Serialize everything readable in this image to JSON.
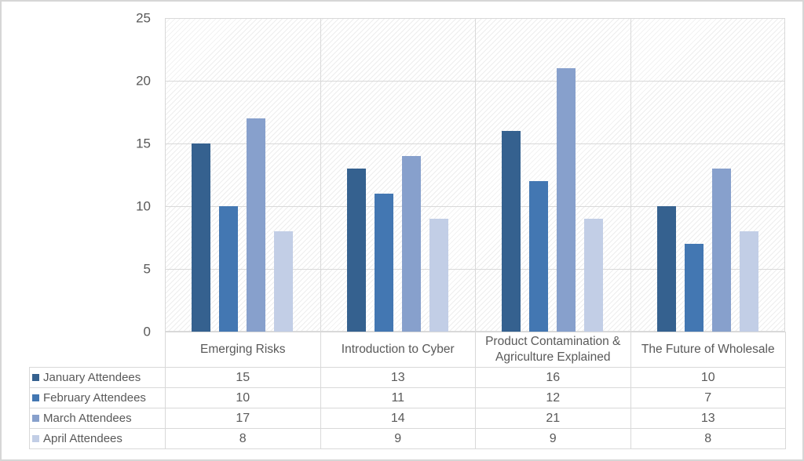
{
  "chart_data": {
    "type": "bar",
    "title": "",
    "xlabel": "",
    "ylabel": "",
    "categories": [
      "Emerging Risks",
      "Introduction to Cyber",
      "Product Contamination & Agriculture Explained",
      "The Future of Wholesale"
    ],
    "series": [
      {
        "name": "January Attendees",
        "color": "#35618F",
        "values": [
          15,
          13,
          16,
          10
        ]
      },
      {
        "name": "February Attendees",
        "color": "#4377B2",
        "values": [
          10,
          11,
          12,
          7
        ]
      },
      {
        "name": "March Attendees",
        "color": "#87A0CC",
        "values": [
          17,
          14,
          21,
          13
        ]
      },
      {
        "name": "April Attendees",
        "color": "#C2CEE6",
        "values": [
          8,
          9,
          9,
          8
        ]
      }
    ],
    "ylim": [
      0,
      25
    ],
    "yticks": [
      0,
      5,
      10,
      15,
      20,
      25
    ],
    "grid": "horizontal value gridlines plus vertical category-boundary gridlines",
    "legend_position": "data-table-left-column",
    "plot_background": "light upward diagonal hatch",
    "colors": {
      "text": "#595959",
      "gridline": "#d9d9d9",
      "table_border": "#d9d9d9"
    }
  }
}
